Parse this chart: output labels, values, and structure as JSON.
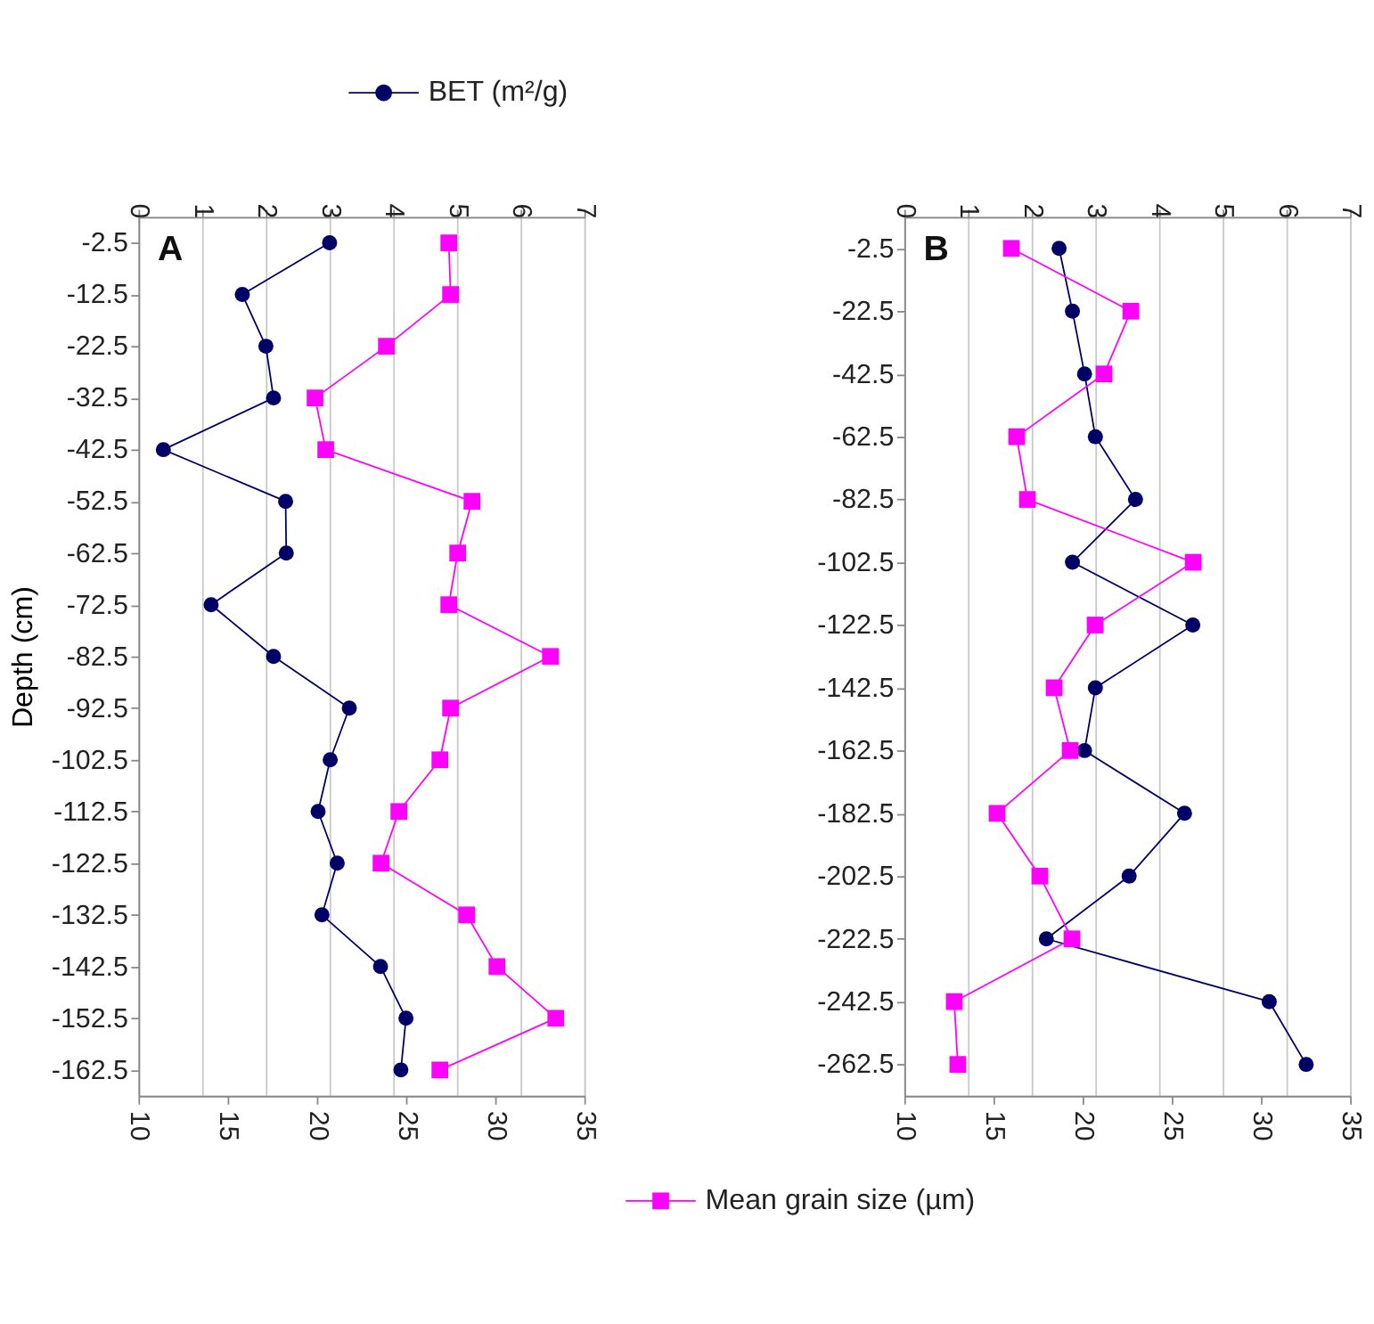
{
  "chart_data": [
    {
      "type": "line",
      "orientation": "horizontal",
      "ylabel": "Depth (cm)",
      "legend": "top",
      "grid": "x2",
      "annotations": [
        "A"
      ],
      "categories": [
        "-2.5",
        "-12.5",
        "-22.5",
        "-32.5",
        "-42.5",
        "-52.5",
        "-62.5",
        "-72.5",
        "-82.5",
        "-92.5",
        "-102.5",
        "-112.5",
        "-122.5",
        "-132.5",
        "-142.5",
        "-152.5",
        "-162.5"
      ],
      "xlim": [
        10,
        35
      ],
      "xticks": [
        10,
        15,
        20,
        25,
        30,
        35
      ],
      "x2lim": [
        0,
        7
      ],
      "x2ticks": [
        0,
        1,
        2,
        3,
        4,
        5,
        6,
        7
      ],
      "series": [
        {
          "name": "BET (m²/g)",
          "color": "#000066",
          "axis": "x2",
          "marker": "circle",
          "values": [
            3.0,
            1.63,
            2.0,
            2.12,
            0.39,
            2.31,
            2.32,
            1.14,
            2.12,
            3.31,
            3.01,
            2.82,
            3.12,
            2.88,
            3.8,
            4.2,
            4.12
          ]
        },
        {
          "color": "#ff00ff",
          "marker": "square",
          "values": [
            27.4,
            27.5,
            23.9,
            19.9,
            20.5,
            28.7,
            27.9,
            27.4,
            33.1,
            27.5,
            26.9,
            24.6,
            23.6,
            28.4,
            30.1,
            33.4,
            26.9
          ]
        }
      ]
    },
    {
      "type": "line",
      "orientation": "horizontal",
      "legend": "bottom",
      "grid": "x2",
      "annotations": [
        "B"
      ],
      "categories": [
        "-2.5",
        "-22.5",
        "-42.5",
        "-62.5",
        "-82.5",
        "-102.5",
        "-122.5",
        "-142.5",
        "-162.5",
        "-182.5",
        "-202.5",
        "-222.5",
        "-242.5",
        "-262.5"
      ],
      "xlim": [
        10,
        35
      ],
      "xticks": [
        10,
        15,
        20,
        25,
        30,
        35
      ],
      "x2lim": [
        0,
        7
      ],
      "x2ticks": [
        0,
        1,
        2,
        3,
        4,
        5,
        6,
        7
      ],
      "series": [
        {
          "color": "#000066",
          "axis": "x2",
          "marker": "circle",
          "values": [
            2.43,
            2.64,
            2.83,
            3.0,
            3.63,
            2.64,
            4.53,
            3.0,
            2.83,
            4.4,
            3.53,
            2.23,
            5.73,
            6.31
          ]
        },
        {
          "name": "Mean grain size (µm)",
          "color": "#ff00ff",
          "marker": "square",
          "values": [
            16.0,
            22.7,
            21.2,
            16.3,
            16.9,
            26.2,
            20.7,
            18.4,
            19.3,
            15.2,
            17.6,
            19.4,
            12.8,
            13.0
          ]
        }
      ]
    }
  ]
}
